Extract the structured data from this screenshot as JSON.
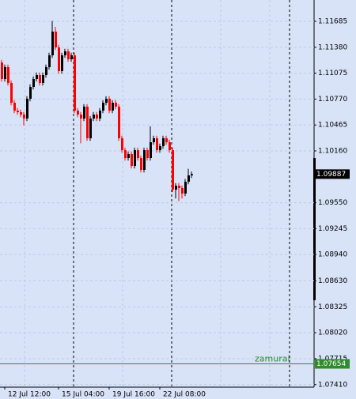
{
  "chart_data": {
    "type": "candlestick",
    "categories": [
      null,
      "12 Jul 12:00",
      null,
      null,
      null,
      null,
      null,
      null,
      null,
      null,
      null,
      null,
      null,
      null,
      null,
      null,
      null,
      null,
      "15 Jul 04:00",
      null,
      null,
      null,
      null,
      null,
      null,
      null,
      null,
      null,
      null,
      null,
      null,
      null,
      null,
      null,
      "19 Jul 16:00",
      null,
      null,
      null,
      null,
      null,
      null,
      null,
      null,
      null,
      null,
      null,
      null,
      null,
      null,
      null,
      "22 Jul 08:00",
      null,
      null,
      null,
      null,
      null,
      null,
      null,
      null,
      null,
      null
    ],
    "open": [
      1.112,
      1.11006,
      1.11146,
      1.1096,
      1.10727,
      1.10634,
      1.10616,
      1.10588,
      1.10541,
      1.10774,
      1.10913,
      1.11006,
      1.11053,
      1.1096,
      1.11053,
      1.11146,
      1.11285,
      1.11564,
      1.11378,
      1.11099,
      1.11285,
      1.11332,
      1.11239,
      1.11285,
      1.10634,
      1.10588,
      1.10541,
      1.10681,
      1.10309,
      1.10541,
      1.10588,
      1.10541,
      1.10634,
      1.10727,
      1.10774,
      1.10634,
      1.10727,
      1.10681,
      1.10309,
      1.10169,
      1.10076,
      1.10123,
      1.09983,
      1.10169,
      1.10076,
      1.09937,
      1.10169,
      1.10076,
      1.10262,
      1.10309,
      1.10169,
      1.10216,
      1.10309,
      1.10262,
      1.10169,
      1.09704,
      1.09751,
      1.09723,
      1.09658,
      1.09797,
      1.09872
    ],
    "high": [
      1.1123,
      1.11176,
      1.11176,
      1.1099,
      1.10757,
      1.10664,
      1.10646,
      1.10618,
      1.10804,
      1.10943,
      1.11036,
      1.11083,
      1.11083,
      1.11083,
      1.11176,
      1.11315,
      1.1169,
      1.1162,
      1.11408,
      1.11315,
      1.11362,
      1.11362,
      1.11315,
      1.11315,
      1.10664,
      1.10618,
      1.10711,
      1.10711,
      1.10571,
      1.10618,
      1.10618,
      1.10664,
      1.10757,
      1.10804,
      1.10804,
      1.10757,
      1.10757,
      1.10711,
      1.10339,
      1.10199,
      1.10153,
      1.10153,
      1.10199,
      1.10199,
      1.10106,
      1.10199,
      1.10199,
      1.1045,
      1.10339,
      1.10339,
      1.10246,
      1.10339,
      1.10339,
      1.10292,
      1.10199,
      1.09781,
      1.09781,
      1.09753,
      1.0983,
      1.0995,
      1.09917
    ],
    "low": [
      1.10976,
      1.10976,
      1.1093,
      1.10697,
      1.10604,
      1.10586,
      1.10558,
      1.1046,
      1.10511,
      1.10744,
      1.10883,
      1.10976,
      1.1093,
      1.1093,
      1.11023,
      1.11116,
      1.11255,
      1.11348,
      1.11069,
      1.11069,
      1.11255,
      1.11209,
      1.11209,
      1.10604,
      1.10558,
      1.1025,
      1.10511,
      1.10279,
      1.10279,
      1.10511,
      1.10511,
      1.10511,
      1.10604,
      1.10697,
      1.10604,
      1.10604,
      1.10651,
      1.10279,
      1.10139,
      1.10046,
      1.10046,
      1.09953,
      1.09953,
      1.10046,
      1.09907,
      1.09907,
      1.10046,
      1.10046,
      1.10232,
      1.10139,
      1.10139,
      1.10186,
      1.10232,
      1.10139,
      1.09674,
      1.096,
      1.0957,
      1.096,
      1.09628,
      1.09767,
      1.09842
    ],
    "close": [
      1.11006,
      1.11146,
      1.1096,
      1.10727,
      1.10634,
      1.10616,
      1.10588,
      1.10541,
      1.10774,
      1.10913,
      1.11006,
      1.11053,
      1.1096,
      1.11053,
      1.11146,
      1.11285,
      1.11564,
      1.11378,
      1.11099,
      1.11285,
      1.11332,
      1.11239,
      1.11285,
      1.10634,
      1.10588,
      1.10541,
      1.10681,
      1.10309,
      1.10541,
      1.10588,
      1.10541,
      1.10634,
      1.10727,
      1.10774,
      1.10634,
      1.10727,
      1.10681,
      1.10309,
      1.10169,
      1.10076,
      1.10123,
      1.09983,
      1.10169,
      1.10076,
      1.09937,
      1.10169,
      1.10076,
      1.10262,
      1.10309,
      1.10169,
      1.10216,
      1.10309,
      1.10262,
      1.10169,
      1.09704,
      1.09751,
      1.09723,
      1.09658,
      1.09797,
      1.09872,
      1.09887
    ],
    "up_color": "#000000",
    "down_color": "#ff0000",
    "ylim": [
      1.0738,
      1.11936
    ],
    "yticks": [
      1.11685,
      {
        "value": 1.1138,
        "label": "1.11380"
      },
      1.11075,
      {
        "value": 1.1077,
        "label": "1.10770"
      },
      1.10465,
      {
        "value": 1.1016,
        "label": "1.10160"
      },
      {
        "value": 1.0955,
        "label": "1.09550"
      },
      1.09245,
      {
        "value": 1.0894,
        "label": "1.08940"
      },
      {
        "value": 1.0863,
        "label": "1.08630"
      },
      1.08325,
      {
        "value": 1.0802,
        "label": "1.08020"
      },
      1.07715,
      {
        "value": 1.0741,
        "label": "1.07410"
      }
    ],
    "grid": true,
    "current_price": 1.09887,
    "hline": {
      "name": "zamurai",
      "value": 1.07654,
      "color": "#2e8b2e"
    }
  }
}
